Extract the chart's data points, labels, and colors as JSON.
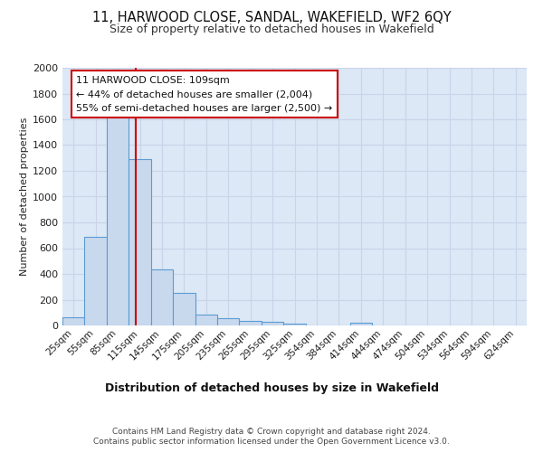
{
  "title1": "11, HARWOOD CLOSE, SANDAL, WAKEFIELD, WF2 6QY",
  "title2": "Size of property relative to detached houses in Wakefield",
  "xlabel": "Distribution of detached houses by size in Wakefield",
  "ylabel": "Number of detached properties",
  "footer1": "Contains HM Land Registry data © Crown copyright and database right 2024.",
  "footer2": "Contains public sector information licensed under the Open Government Licence v3.0.",
  "bar_labels": [
    "25sqm",
    "55sqm",
    "85sqm",
    "115sqm",
    "145sqm",
    "175sqm",
    "205sqm",
    "235sqm",
    "265sqm",
    "295sqm",
    "325sqm",
    "354sqm",
    "384sqm",
    "414sqm",
    "444sqm",
    "474sqm",
    "504sqm",
    "534sqm",
    "564sqm",
    "594sqm",
    "624sqm"
  ],
  "bar_values": [
    65,
    690,
    1640,
    1290,
    435,
    255,
    85,
    55,
    35,
    30,
    15,
    0,
    0,
    20,
    0,
    0,
    0,
    0,
    0,
    0,
    0
  ],
  "bar_color": "#c8d9ee",
  "bar_edge_color": "#5b9bd5",
  "ylim": [
    0,
    2000
  ],
  "yticks": [
    0,
    200,
    400,
    600,
    800,
    1000,
    1200,
    1400,
    1600,
    1800,
    2000
  ],
  "property_label": "11 HARWOOD CLOSE: 109sqm",
  "annotation_line1": "← 44% of detached houses are smaller (2,004)",
  "annotation_line2": "55% of semi-detached houses are larger (2,500) →",
  "vline_color": "#cc0000",
  "annotation_box_edge": "#cc0000",
  "grid_color": "#c8d4e8",
  "background_color": "#dce8f5"
}
